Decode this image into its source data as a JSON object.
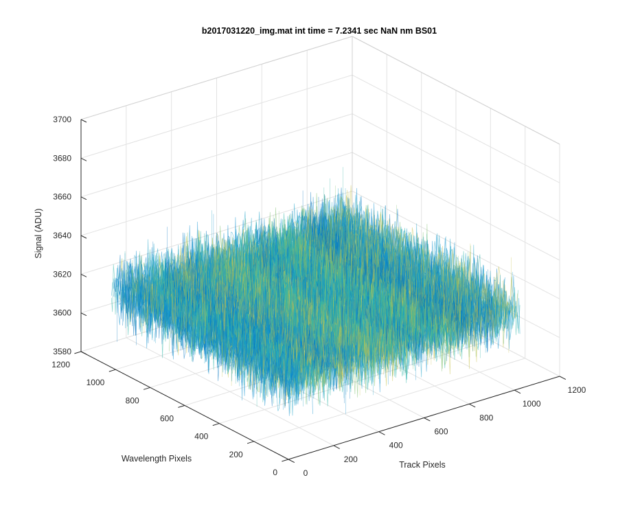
{
  "chart_data": {
    "type": "surface",
    "title": "b2017031220_img.mat int time = 7.2341 sec  NaN nm BS01",
    "xlabel": "Track Pixels",
    "ylabel": "Wavelength Pixels",
    "zlabel": "Signal (ADU)",
    "xlim": [
      0,
      1200
    ],
    "ylim": [
      0,
      1200
    ],
    "zlim": [
      3580,
      3700
    ],
    "x_ticks": [
      0,
      200,
      400,
      600,
      800,
      1000,
      1200
    ],
    "y_ticks": [
      0,
      200,
      400,
      600,
      800,
      1000,
      1200
    ],
    "z_ticks": [
      3580,
      3600,
      3620,
      3640,
      3660,
      3680,
      3700
    ],
    "x_tick_labels": [
      "0",
      "200",
      "400",
      "600",
      "800",
      "1000",
      "1200"
    ],
    "y_tick_labels": [
      "0",
      "200",
      "400",
      "600",
      "800",
      "1000",
      "1200"
    ],
    "z_tick_labels": [
      "3580",
      "3600",
      "3620",
      "3640",
      "3660",
      "3680",
      "3700"
    ],
    "data_extent": {
      "x": [
        0,
        1024
      ],
      "y": [
        0,
        1024
      ]
    },
    "signal_mean": 3620,
    "noise_band": [
      3595,
      3648
    ],
    "grid": true,
    "colormap": [
      "#0072BD",
      "#0F8FD0",
      "#1DA3C8",
      "#2FB6A8",
      "#7DC06E",
      "#C9C24A"
    ]
  }
}
